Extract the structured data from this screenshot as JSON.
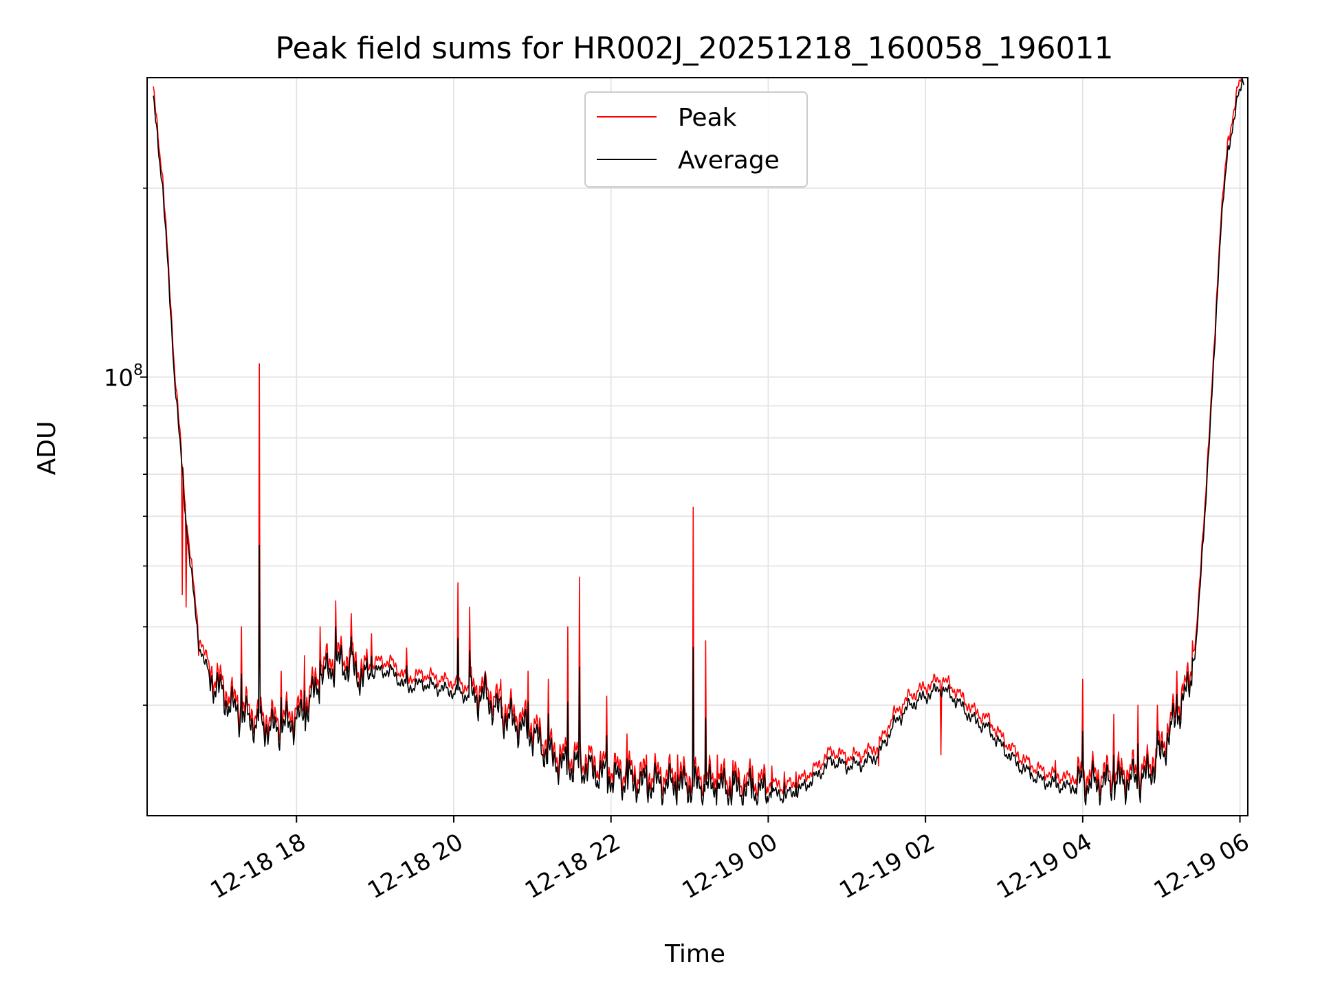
{
  "chart_data": {
    "type": "line",
    "title": "Peak field sums for HR002J_20251218_160058_196011",
    "xlabel": "Time",
    "ylabel": "ADU",
    "yscale": "log",
    "ylim": [
      20000000,
      300000000
    ],
    "xlim_hours": [
      16.1,
      30.1
    ],
    "x_tick_labels": [
      "12-18 18",
      "12-18 20",
      "12-18 22",
      "12-19 00",
      "12-19 02",
      "12-19 04",
      "12-19 06"
    ],
    "x_tick_hours": [
      18,
      20,
      22,
      24,
      26,
      28,
      30
    ],
    "y_tick_label": {
      "base": "10",
      "exponent": "8",
      "value": 100000000
    },
    "y_minor_ticks": [
      30000000,
      40000000,
      50000000,
      60000000,
      70000000,
      80000000,
      90000000,
      200000000
    ],
    "grid": true,
    "legend": {
      "placement": "top-center",
      "entries": [
        "Peak",
        "Average"
      ]
    },
    "colors": {
      "peak": "#ff0000",
      "average": "#000000"
    },
    "baseline_hours": [
      16.15,
      16.3,
      16.45,
      16.6,
      16.75,
      16.9,
      17.0,
      17.15,
      17.3,
      17.5,
      17.7,
      17.9,
      18.1,
      18.3,
      18.5,
      18.7,
      18.85,
      19.0,
      19.2,
      19.4,
      19.6,
      19.8,
      20.0,
      20.2,
      20.4,
      20.6,
      20.8,
      21.0,
      21.2,
      21.4,
      21.6,
      21.8,
      22.0,
      22.2,
      22.4,
      22.6,
      22.8,
      23.0,
      23.2,
      23.4,
      23.6,
      23.8,
      24.0,
      24.2,
      24.4,
      24.6,
      24.8,
      25.0,
      25.2,
      25.4,
      25.6,
      25.8,
      26.0,
      26.2,
      26.4,
      26.6,
      26.8,
      27.0,
      27.2,
      27.4,
      27.6,
      27.8,
      28.0,
      28.2,
      28.4,
      28.6,
      28.8,
      29.0,
      29.2,
      29.35,
      29.45,
      29.55,
      29.65,
      29.75,
      29.85,
      29.95,
      30.05
    ],
    "baseline_adu": [
      300000000,
      200000000,
      100000000,
      58000000,
      38000000,
      33000000,
      32000000,
      30000000,
      29000000,
      28000000,
      27500000,
      28000000,
      29000000,
      33000000,
      35000000,
      34500000,
      33000000,
      34000000,
      34000000,
      32000000,
      32500000,
      32000000,
      31500000,
      31000000,
      31000000,
      29000000,
      28000000,
      27000000,
      25000000,
      24000000,
      24000000,
      23500000,
      23000000,
      22800000,
      22500000,
      22500000,
      22400000,
      22300000,
      22200000,
      22200000,
      22000000,
      22000000,
      21800000,
      21500000,
      22000000,
      23000000,
      24500000,
      24000000,
      24200000,
      25000000,
      28000000,
      30000000,
      31000000,
      32000000,
      30500000,
      28500000,
      27500000,
      25500000,
      24000000,
      23000000,
      22500000,
      22200000,
      22500000,
      22500000,
      22600000,
      22800000,
      23000000,
      25000000,
      29000000,
      32000000,
      38000000,
      60000000,
      95000000,
      170000000,
      230000000,
      270000000,
      300000000
    ],
    "spike_hours": [
      16.55,
      16.6,
      16.75,
      17.3,
      17.53,
      17.8,
      18.1,
      18.3,
      18.5,
      18.7,
      18.95,
      19.4,
      20.05,
      20.2,
      20.4,
      20.6,
      20.95,
      21.2,
      21.45,
      21.6,
      21.95,
      22.2,
      22.45,
      22.85,
      23.05,
      23.2,
      23.35,
      23.55,
      23.8,
      24.05,
      24.2,
      24.35,
      25.4,
      26.2,
      27.35,
      27.65,
      28.0,
      28.4,
      28.7,
      28.95,
      29.2,
      29.4
    ],
    "spike_adu": [
      45000000,
      43000000,
      36000000,
      40000000,
      105000000,
      34000000,
      36000000,
      40000000,
      44000000,
      42000000,
      39000000,
      37000000,
      47000000,
      43000000,
      34000000,
      33000000,
      34000000,
      33000000,
      40000000,
      48000000,
      31000000,
      27000000,
      25000000,
      25000000,
      62000000,
      38000000,
      25000000,
      24500000,
      24000000,
      24000000,
      23500000,
      23500000,
      24000000,
      25000000,
      24000000,
      24500000,
      33000000,
      29000000,
      30000000,
      30000000,
      34000000,
      38000000
    ]
  }
}
